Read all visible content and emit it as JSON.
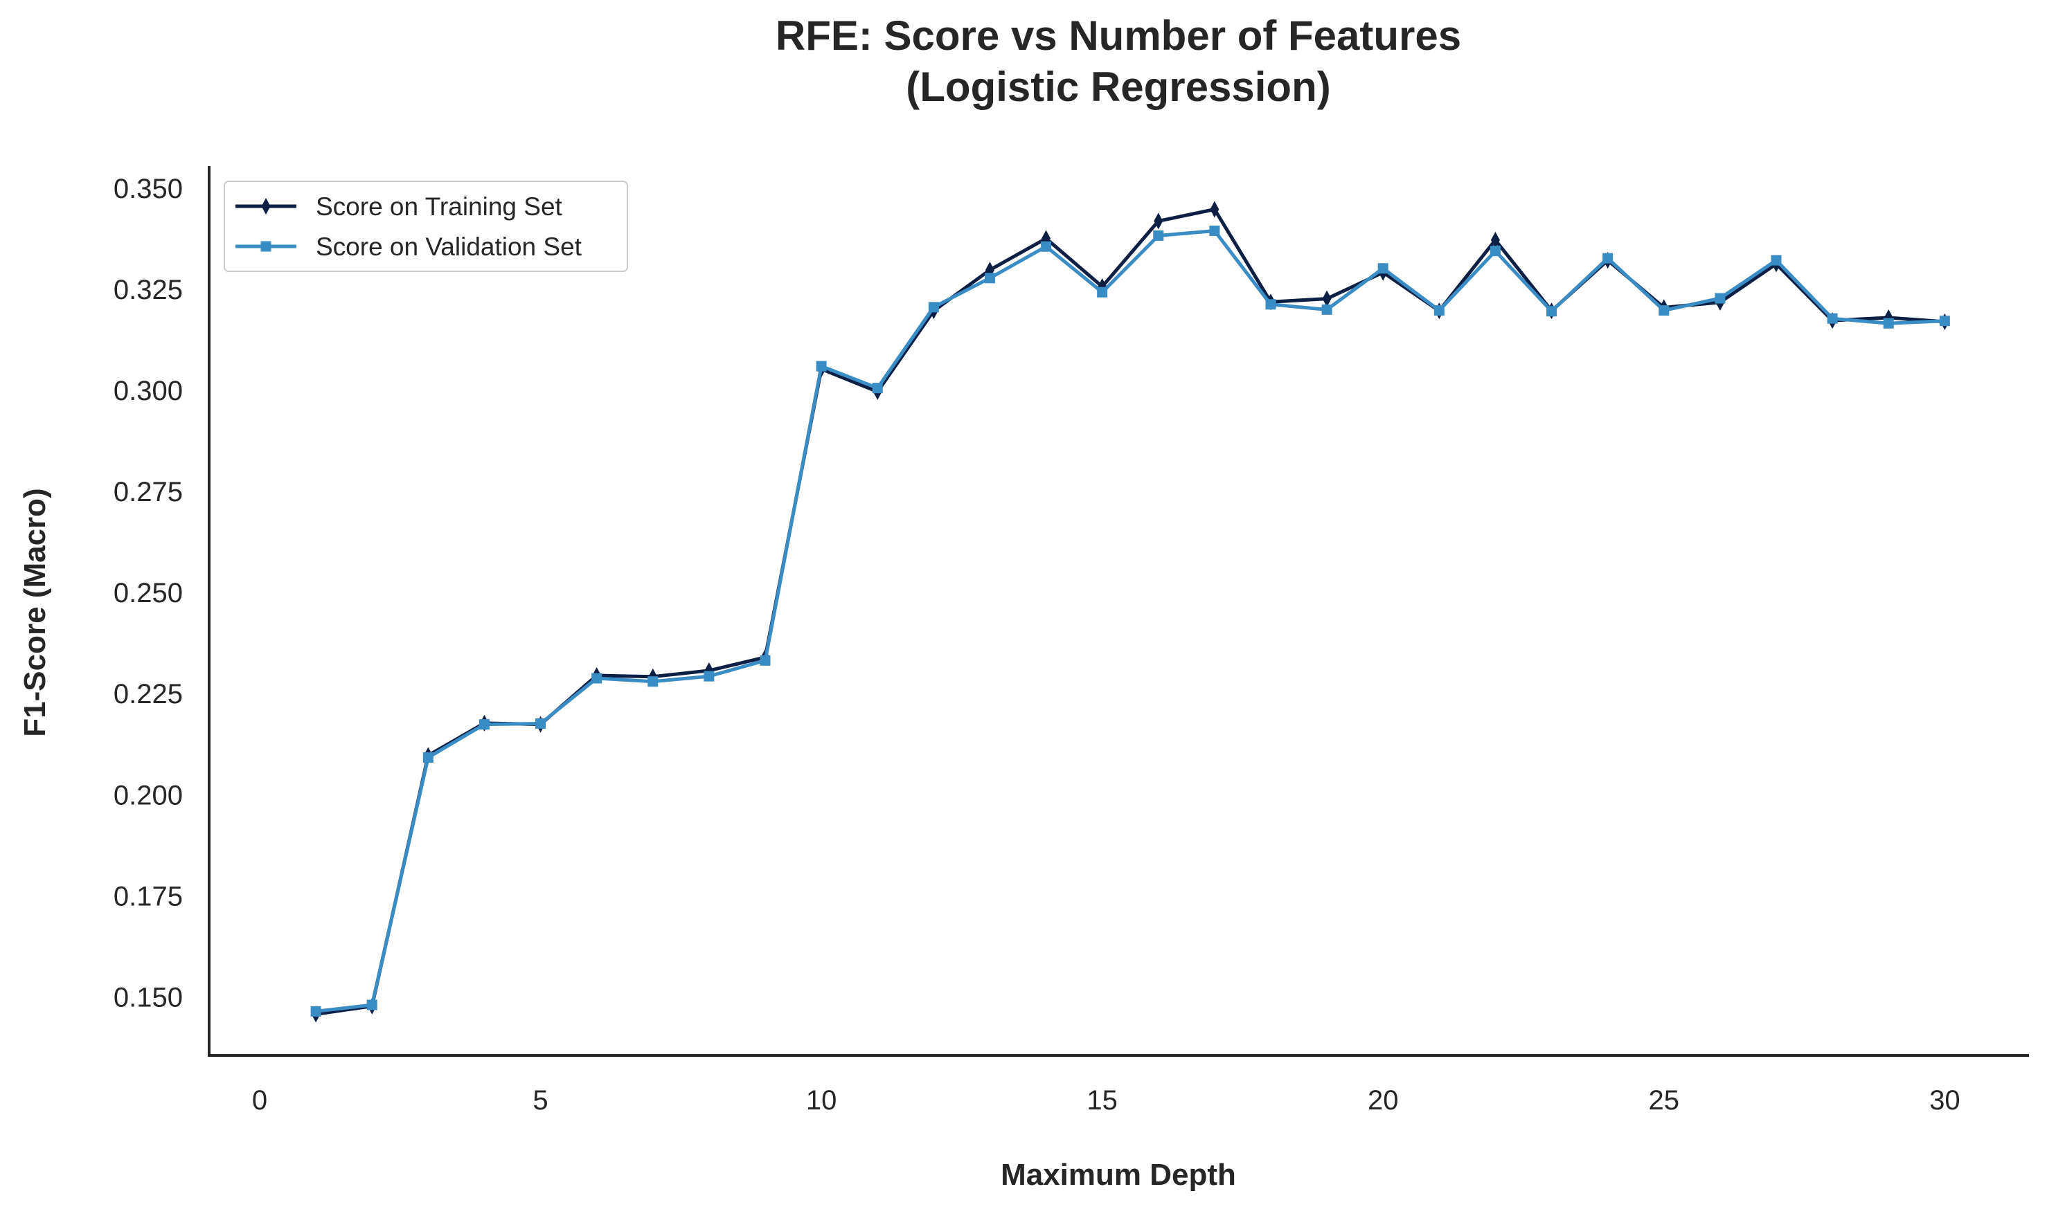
{
  "chart_data": {
    "type": "line",
    "title": "RFE: Score vs Number of Features",
    "subtitle": "(Logistic Regression)",
    "xlabel": "Maximum Depth",
    "ylabel": "F1-Score (Macro)",
    "xlim": [
      -0.9,
      31.5
    ],
    "ylim": [
      0.1355,
      0.3555
    ],
    "xticks": [
      0,
      5,
      10,
      15,
      20,
      25,
      30
    ],
    "xtick_labels": [
      "0",
      "5",
      "10",
      "15",
      "20",
      "25",
      "30"
    ],
    "yticks": [
      0.15,
      0.175,
      0.2,
      0.225,
      0.25,
      0.275,
      0.3,
      0.325,
      0.35
    ],
    "ytick_labels": [
      "0.150",
      "0.175",
      "0.200",
      "0.225",
      "0.250",
      "0.275",
      "0.300",
      "0.325",
      "0.350"
    ],
    "grid": false,
    "legend_position": "top-left",
    "x": [
      1,
      2,
      3,
      4,
      5,
      6,
      7,
      8,
      9,
      10,
      11,
      12,
      13,
      14,
      15,
      16,
      17,
      18,
      19,
      20,
      21,
      22,
      23,
      24,
      25,
      26,
      27,
      28,
      29,
      30
    ],
    "series": [
      {
        "name": "Score on Training Set",
        "color": "#0d1f45",
        "marker": "thin-diamond",
        "values": [
          0.1457,
          0.1477,
          0.2097,
          0.2177,
          0.2174,
          0.2295,
          0.2292,
          0.2307,
          0.234,
          0.3053,
          0.2997,
          0.3197,
          0.3298,
          0.3376,
          0.3257,
          0.3419,
          0.3448,
          0.3219,
          0.3227,
          0.3292,
          0.3197,
          0.3372,
          0.3197,
          0.3322,
          0.3205,
          0.3218,
          0.3313,
          0.3173,
          0.318,
          0.317
        ]
      },
      {
        "name": "Score on Validation Set",
        "color": "#3a8cc4",
        "marker": "square",
        "values": [
          0.1464,
          0.148,
          0.2092,
          0.2174,
          0.2176,
          0.2288,
          0.228,
          0.2293,
          0.2332,
          0.306,
          0.3006,
          0.3206,
          0.3278,
          0.3356,
          0.3243,
          0.3383,
          0.3395,
          0.3213,
          0.32,
          0.3302,
          0.3198,
          0.3345,
          0.3196,
          0.3327,
          0.3198,
          0.3228,
          0.3322,
          0.3178,
          0.3166,
          0.3172
        ]
      }
    ]
  }
}
